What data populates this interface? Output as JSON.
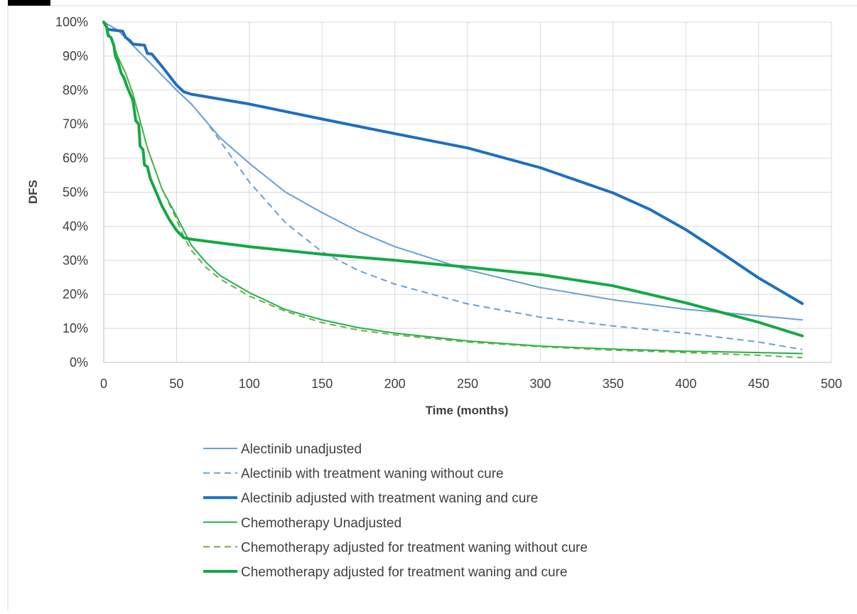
{
  "chart_data": {
    "type": "line",
    "title": "",
    "xlabel": "Time (months)",
    "ylabel": "DFS",
    "xlim": [
      0,
      500
    ],
    "ylim": [
      0,
      100
    ],
    "x_ticks": [
      "0",
      "50",
      "100",
      "150",
      "200",
      "250",
      "300",
      "350",
      "400",
      "450",
      "500"
    ],
    "y_ticks": [
      "0%",
      "10%",
      "20%",
      "30%",
      "40%",
      "50%",
      "60%",
      "70%",
      "80%",
      "90%",
      "100%"
    ],
    "grid": true,
    "legend_position": "bottom",
    "colors": {
      "alectinib_light": "#6A9FD4",
      "alectinib_dark": "#1F6FBF",
      "chemo_light": "#22B14C",
      "chemo_dash": "#70AD47",
      "chemo_dark": "#14A846",
      "grid": "#D9D9D9",
      "axis": "#BFBFBF"
    },
    "series": [
      {
        "name": "Alectinib unadjusted",
        "color": "#6A9FD4",
        "width": 2,
        "dash": false,
        "points": [
          [
            0,
            100
          ],
          [
            10,
            97.5
          ],
          [
            25,
            91
          ],
          [
            50,
            80
          ],
          [
            60,
            76
          ],
          [
            80,
            66
          ],
          [
            100,
            58.5
          ],
          [
            125,
            50
          ],
          [
            150,
            44
          ],
          [
            175,
            38.5
          ],
          [
            200,
            34
          ],
          [
            250,
            27.2
          ],
          [
            300,
            22
          ],
          [
            350,
            18.4
          ],
          [
            400,
            15.6
          ],
          [
            450,
            13.7
          ],
          [
            480,
            12.5
          ]
        ]
      },
      {
        "name": "Alectinib with treatment waning without cure",
        "color": "#6A9FD4",
        "width": 2,
        "dash": true,
        "points": [
          [
            0,
            100
          ],
          [
            10,
            97.5
          ],
          [
            25,
            91
          ],
          [
            50,
            80
          ],
          [
            60,
            76
          ],
          [
            70,
            71
          ],
          [
            80,
            65
          ],
          [
            90,
            59
          ],
          [
            100,
            53
          ],
          [
            125,
            41
          ],
          [
            150,
            32.5
          ],
          [
            175,
            27
          ],
          [
            200,
            23
          ],
          [
            250,
            17.2
          ],
          [
            300,
            13.3
          ],
          [
            350,
            10.7
          ],
          [
            400,
            8.6
          ],
          [
            450,
            6
          ],
          [
            480,
            3.8
          ]
        ]
      },
      {
        "name": "Alectinib adjusted with treatment waning and cure",
        "color": "#1F6FBF",
        "width": 4,
        "dash": false,
        "points": [
          [
            0,
            100
          ],
          [
            3,
            97.8
          ],
          [
            13,
            97.3
          ],
          [
            15,
            95.5
          ],
          [
            18,
            94.5
          ],
          [
            20,
            93.5
          ],
          [
            28,
            93.2
          ],
          [
            30,
            90.8
          ],
          [
            33,
            90.6
          ],
          [
            40,
            87
          ],
          [
            50,
            81.5
          ],
          [
            55,
            79.5
          ],
          [
            60,
            78.8
          ],
          [
            100,
            75.9
          ],
          [
            150,
            71.5
          ],
          [
            200,
            67.2
          ],
          [
            250,
            63
          ],
          [
            300,
            57.2
          ],
          [
            350,
            49.8
          ],
          [
            375,
            45
          ],
          [
            400,
            39
          ],
          [
            425,
            32
          ],
          [
            450,
            24.8
          ],
          [
            480,
            17.3
          ]
        ]
      },
      {
        "name": "Chemotherapy Unadjusted",
        "color": "#22B14C",
        "width": 2,
        "dash": false,
        "points": [
          [
            0,
            100
          ],
          [
            5,
            95
          ],
          [
            10,
            89.5
          ],
          [
            15,
            85
          ],
          [
            20,
            79
          ],
          [
            25,
            71
          ],
          [
            30,
            63
          ],
          [
            40,
            51
          ],
          [
            50,
            43
          ],
          [
            60,
            34.5
          ],
          [
            70,
            29.5
          ],
          [
            80,
            25.5
          ],
          [
            100,
            20.5
          ],
          [
            125,
            15.5
          ],
          [
            150,
            12.5
          ],
          [
            175,
            10.2
          ],
          [
            200,
            8.6
          ],
          [
            250,
            6.3
          ],
          [
            300,
            4.8
          ],
          [
            350,
            3.9
          ],
          [
            400,
            3.3
          ],
          [
            450,
            2.9
          ],
          [
            480,
            2.6
          ]
        ]
      },
      {
        "name": "Chemotherapy adjusted for treatment waning without cure",
        "color": "#70AD47",
        "width": 2,
        "dash": true,
        "points": [
          [
            0,
            100
          ],
          [
            5,
            95
          ],
          [
            10,
            89.5
          ],
          [
            15,
            85
          ],
          [
            20,
            79
          ],
          [
            25,
            71
          ],
          [
            30,
            63
          ],
          [
            40,
            51
          ],
          [
            50,
            42
          ],
          [
            55,
            37
          ],
          [
            60,
            33
          ],
          [
            70,
            28
          ],
          [
            80,
            24.5
          ],
          [
            100,
            19.5
          ],
          [
            125,
            15
          ],
          [
            150,
            11.7
          ],
          [
            175,
            9.5
          ],
          [
            200,
            8.1
          ],
          [
            250,
            6
          ],
          [
            300,
            4.6
          ],
          [
            350,
            3.6
          ],
          [
            400,
            2.9
          ],
          [
            450,
            2.1
          ],
          [
            480,
            1.4
          ]
        ]
      },
      {
        "name": "Chemotherapy adjusted for treatment waning and cure",
        "color": "#14A846",
        "width": 4,
        "dash": false,
        "points": [
          [
            0,
            100
          ],
          [
            2,
            98.5
          ],
          [
            3,
            96
          ],
          [
            5,
            95.5
          ],
          [
            7,
            93
          ],
          [
            8,
            90
          ],
          [
            10,
            88
          ],
          [
            12,
            85
          ],
          [
            14,
            83.5
          ],
          [
            16,
            81
          ],
          [
            18,
            79
          ],
          [
            20,
            77
          ],
          [
            22,
            71
          ],
          [
            24,
            70
          ],
          [
            25,
            63.5
          ],
          [
            27,
            62.5
          ],
          [
            28,
            58
          ],
          [
            30,
            57.5
          ],
          [
            32,
            54
          ],
          [
            35,
            51
          ],
          [
            40,
            46
          ],
          [
            45,
            42
          ],
          [
            50,
            38.8
          ],
          [
            55,
            36.6
          ],
          [
            60,
            36.2
          ],
          [
            100,
            34
          ],
          [
            150,
            31.8
          ],
          [
            200,
            30
          ],
          [
            250,
            28
          ],
          [
            300,
            25.8
          ],
          [
            350,
            22.5
          ],
          [
            400,
            17.5
          ],
          [
            450,
            11.8
          ],
          [
            480,
            7.8
          ]
        ]
      }
    ]
  }
}
